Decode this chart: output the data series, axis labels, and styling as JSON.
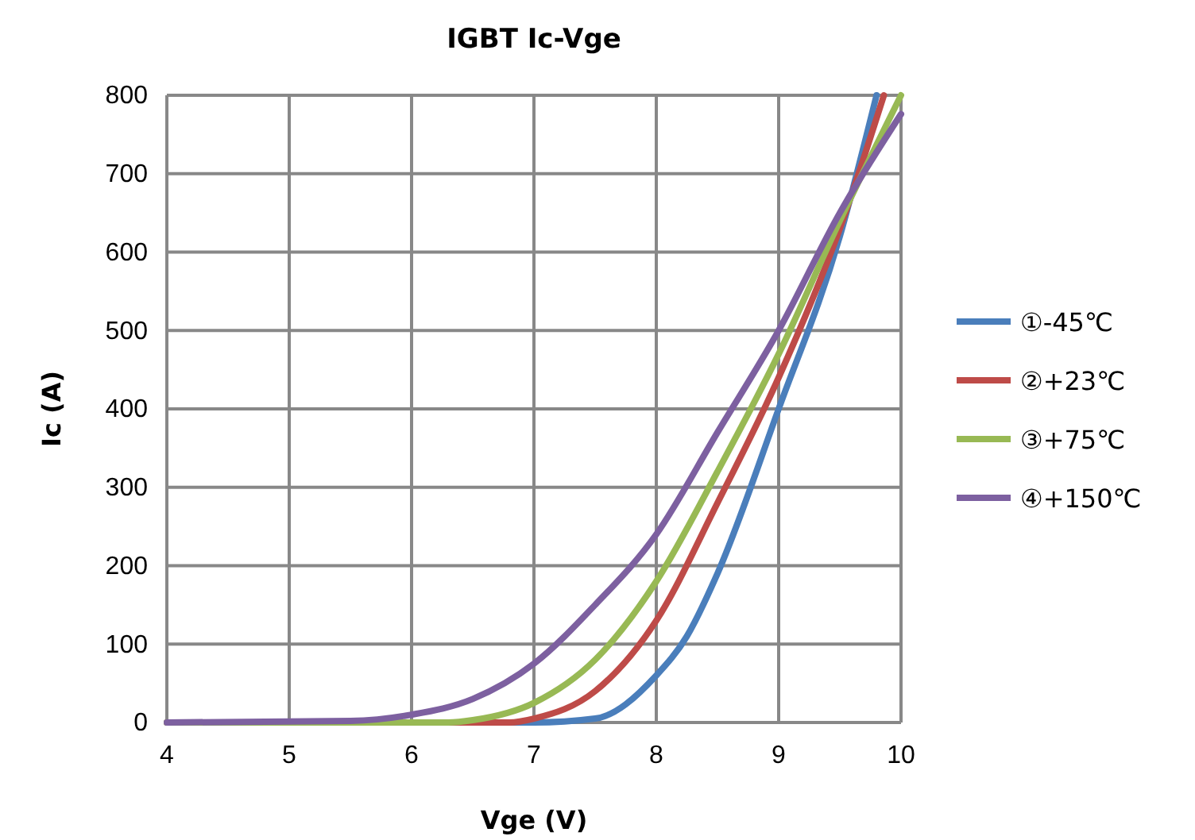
{
  "chart_data": {
    "type": "line",
    "title": "IGBT Ic-Vge",
    "xlabel": "Vge (V)",
    "ylabel": "Ic (A)",
    "xlim": [
      4,
      10
    ],
    "xticks": [
      4,
      5,
      6,
      7,
      8,
      9,
      10
    ],
    "ylim": [
      0,
      800
    ],
    "yticks": [
      0,
      100,
      200,
      300,
      400,
      500,
      600,
      700,
      800
    ],
    "grid": true,
    "legend": "right",
    "marker": "none",
    "line_style": "solid",
    "series": [
      {
        "name": "①-45℃",
        "color": "#4a7ebb",
        "x": [
          4,
          7,
          7.5,
          8,
          8.25,
          8.5,
          9,
          9.5,
          9.8
        ],
        "values": [
          0,
          0,
          5,
          60,
          110,
          190,
          400,
          620,
          800
        ]
      },
      {
        "name": "②+23℃",
        "color": "#be4b48",
        "x": [
          4,
          6.8,
          7,
          7.5,
          8,
          8.5,
          9,
          9.5,
          9.86
        ],
        "values": [
          0,
          0,
          5,
          40,
          130,
          280,
          440,
          630,
          800
        ]
      },
      {
        "name": "③+75℃",
        "color": "#98b954",
        "x": [
          4,
          6.3,
          6.5,
          7,
          7.5,
          8,
          8.5,
          9,
          9.5,
          10
        ],
        "values": [
          0,
          0,
          3,
          25,
          80,
          180,
          320,
          470,
          640,
          800
        ]
      },
      {
        "name": "④+150℃",
        "color": "#7d60a0",
        "x": [
          4,
          5.5,
          6,
          6.5,
          7,
          7.5,
          8,
          8.5,
          9,
          9.5,
          10
        ],
        "values": [
          0,
          2,
          10,
          30,
          75,
          150,
          240,
          370,
          500,
          650,
          776
        ]
      }
    ]
  }
}
